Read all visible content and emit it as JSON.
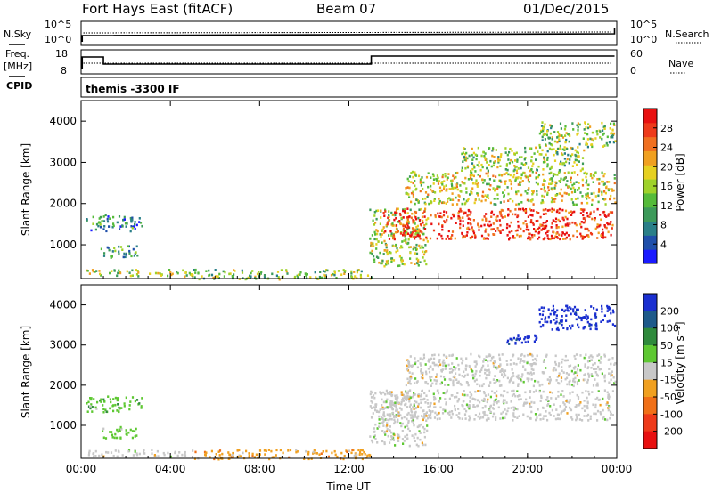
{
  "header": {
    "station": "Fort Hays East (fitACF)",
    "beam": "Beam 07",
    "date": "01/Dec/2015"
  },
  "status_panels": {
    "nsky_label": "N.Sky",
    "nsearch_label": "N.Search",
    "noise_ticks": [
      "10^5",
      "10^0"
    ],
    "freq_label_line1": "Freq.",
    "freq_label_line2": "[MHz]",
    "freq_ticks": [
      "18",
      "8"
    ],
    "nave_label": "Nave",
    "nave_ticks": [
      "60",
      "0"
    ],
    "cpid_label": "CPID",
    "cpid_value": "themis -3300 IF"
  },
  "chart_data": [
    {
      "type": "heatmap",
      "name": "power",
      "ylabel": "Slant Range [km]",
      "xlabel": "",
      "x_ticks": [
        "00:00",
        "04:00",
        "08:00",
        "12:00",
        "16:00",
        "20:00",
        "00:00"
      ],
      "xlim_hours": [
        0,
        24
      ],
      "y_ticks": [
        1000,
        2000,
        3000,
        4000
      ],
      "ylim_km": [
        180,
        4500
      ],
      "colorbar": {
        "label": "Power [dB]",
        "ticks": [
          4,
          8,
          12,
          16,
          20,
          24,
          28
        ],
        "range": [
          0,
          32
        ],
        "colors": [
          "#1a1aff",
          "#1f4faa",
          "#2a7f88",
          "#3d9a5a",
          "#55bb3a",
          "#9fd22a",
          "#e6d020",
          "#f0a020",
          "#f07020",
          "#ee3a1a",
          "#e81010"
        ]
      },
      "regions": [
        {
          "t": [
            0.2,
            2.7
          ],
          "r": [
            1350,
            1750
          ],
          "level": 0.25
        },
        {
          "t": [
            0.8,
            2.5
          ],
          "r": [
            700,
            1000
          ],
          "level": 0.3
        },
        {
          "t": [
            0.2,
            5.0
          ],
          "r": [
            250,
            420
          ],
          "level": 0.5
        },
        {
          "t": [
            5.0,
            13.0
          ],
          "r": [
            180,
            420
          ],
          "level": 0.45
        },
        {
          "t": [
            12.9,
            15.5
          ],
          "r": [
            500,
            1900
          ],
          "level": 0.5
        },
        {
          "t": [
            13.5,
            23.8
          ],
          "r": [
            1150,
            1900
          ],
          "level": 0.9
        },
        {
          "t": [
            14.5,
            23.9
          ],
          "r": [
            2000,
            2800
          ],
          "level": 0.55
        },
        {
          "t": [
            17.0,
            22.5
          ],
          "r": [
            2800,
            3400
          ],
          "level": 0.45
        },
        {
          "t": [
            20.5,
            23.9
          ],
          "r": [
            3400,
            4000
          ],
          "level": 0.45
        }
      ]
    },
    {
      "type": "heatmap",
      "name": "velocity",
      "ylabel": "Slant Range [km]",
      "xlabel": "Time UT",
      "x_ticks": [
        "00:00",
        "04:00",
        "08:00",
        "12:00",
        "16:00",
        "20:00",
        "00:00"
      ],
      "xlim_hours": [
        0,
        24
      ],
      "y_ticks": [
        1000,
        2000,
        3000,
        4000
      ],
      "ylim_km": [
        180,
        4500
      ],
      "colorbar": {
        "label": "Velocity [m s⁻¹]",
        "ticks": [
          200,
          100,
          50,
          15,
          -15,
          -50,
          -100,
          -200
        ],
        "colors": [
          "#1a2fd0",
          "#1e5a8a",
          "#2f8a3c",
          "#5ec832",
          "#c8c8c8",
          "#f0a020",
          "#f07018",
          "#ee3a1a",
          "#e81010"
        ]
      },
      "regions": [
        {
          "t": [
            0.2,
            2.7
          ],
          "r": [
            1350,
            1750
          ],
          "level": 3
        },
        {
          "t": [
            0.8,
            2.5
          ],
          "r": [
            700,
            1000
          ],
          "level": 3
        },
        {
          "t": [
            0.2,
            5.0
          ],
          "r": [
            250,
            420
          ],
          "level": 4
        },
        {
          "t": [
            5.0,
            13.0
          ],
          "r": [
            180,
            420
          ],
          "level": 5
        },
        {
          "t": [
            12.9,
            15.5
          ],
          "r": [
            500,
            1900
          ],
          "level": 4
        },
        {
          "t": [
            13.5,
            23.8
          ],
          "r": [
            1150,
            1900
          ],
          "level": 4
        },
        {
          "t": [
            14.5,
            23.9
          ],
          "r": [
            2000,
            2800
          ],
          "level": 4
        },
        {
          "t": [
            19.0,
            20.4
          ],
          "r": [
            3050,
            3300
          ],
          "level": 0
        },
        {
          "t": [
            20.5,
            23.9
          ],
          "r": [
            3400,
            4000
          ],
          "level": 0
        }
      ]
    }
  ]
}
